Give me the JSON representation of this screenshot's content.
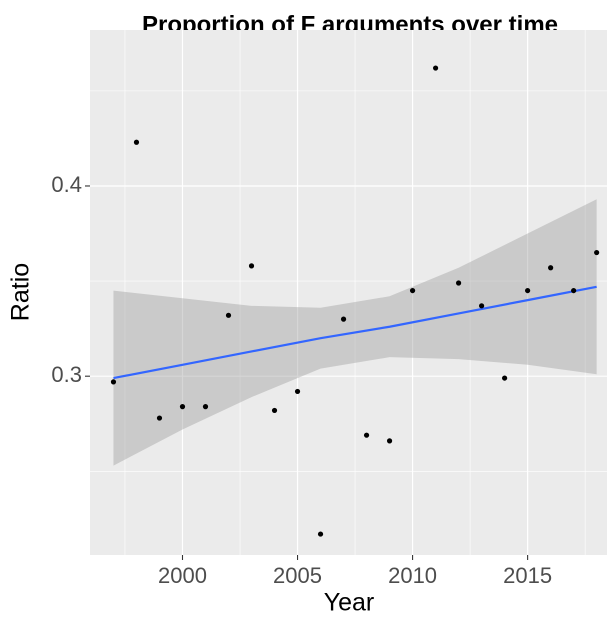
{
  "chart_data": {
    "type": "scatter",
    "title": "Proportion of F arguments over time",
    "xlabel": "Year",
    "ylabel": "Ratio",
    "x": [
      1997,
      1998,
      1999,
      2000,
      2001,
      2002,
      2003,
      2004,
      2005,
      2006,
      2007,
      2008,
      2009,
      2010,
      2011,
      2012,
      2013,
      2014,
      2015,
      2016,
      2017,
      2018
    ],
    "values": [
      0.297,
      0.423,
      0.278,
      0.284,
      0.284,
      0.332,
      0.358,
      0.282,
      0.292,
      0.217,
      0.33,
      0.269,
      0.266,
      0.345,
      0.462,
      0.349,
      0.337,
      0.299,
      0.345,
      0.357,
      0.345,
      0.365
    ],
    "color": "#000000",
    "smooth": {
      "color": "#3366ff",
      "band_color": "#999999",
      "x": [
        1997,
        2000,
        2003,
        2006,
        2009,
        2012,
        2015,
        2018
      ],
      "fit": [
        0.299,
        0.306,
        0.313,
        0.32,
        0.326,
        0.333,
        0.34,
        0.347
      ],
      "lower": [
        0.253,
        0.272,
        0.289,
        0.304,
        0.31,
        0.309,
        0.306,
        0.301
      ],
      "upper": [
        0.345,
        0.341,
        0.337,
        0.336,
        0.342,
        0.357,
        0.375,
        0.393
      ]
    },
    "xlim": [
      1995.98,
      2018.45
    ],
    "ylim": [
      0.206,
      0.482
    ],
    "xticks": [
      2000,
      2005,
      2010,
      2015
    ],
    "yticks": [
      0.3,
      0.4
    ],
    "x_minor_ticks": [
      1997.5,
      2002.5,
      2007.5,
      2012.5,
      2017.5
    ],
    "y_minor_ticks": [
      0.25,
      0.35,
      0.45
    ],
    "grid": true
  }
}
